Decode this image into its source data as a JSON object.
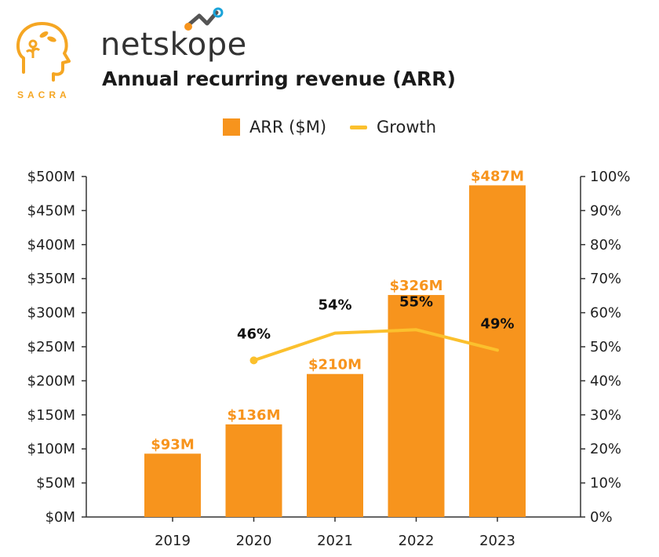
{
  "branding": {
    "sacra_text": "SACRA",
    "company_name": "netskope"
  },
  "colors": {
    "bar": "#f7941d",
    "growth_line": "#fbc02d",
    "sacra_accent": "#f5a623"
  },
  "chart_data": {
    "type": "bar",
    "title": "Annual recurring revenue (ARR)",
    "categories": [
      "2019",
      "2020",
      "2021",
      "2022",
      "2023"
    ],
    "series": [
      {
        "name": "ARR ($M)",
        "type": "bar",
        "axis": "left",
        "values": [
          93,
          136,
          210,
          326,
          487
        ],
        "labels": [
          "$93M",
          "$136M",
          "$210M",
          "$326M",
          "$487M"
        ]
      },
      {
        "name": "Growth",
        "type": "line",
        "axis": "right",
        "values": [
          null,
          46,
          54,
          55,
          49
        ],
        "labels": [
          "",
          "46%",
          "54%",
          "55%",
          "49%"
        ]
      }
    ],
    "y_left": {
      "lim": [
        0,
        500
      ],
      "ticks": [
        0,
        50,
        100,
        150,
        200,
        250,
        300,
        350,
        400,
        450,
        500
      ],
      "tick_labels": [
        "$0M",
        "$50M",
        "$100M",
        "$150M",
        "$200M",
        "$250M",
        "$300M",
        "$350M",
        "$400M",
        "$450M",
        "$500M"
      ]
    },
    "y_right": {
      "lim": [
        0,
        100
      ],
      "ticks": [
        0,
        10,
        20,
        30,
        40,
        50,
        60,
        70,
        80,
        90,
        100
      ],
      "tick_labels": [
        "0%",
        "10%",
        "20%",
        "30%",
        "40%",
        "50%",
        "60%",
        "70%",
        "80%",
        "90%",
        "100%"
      ]
    },
    "legend_position": "top-center",
    "grid": false
  }
}
